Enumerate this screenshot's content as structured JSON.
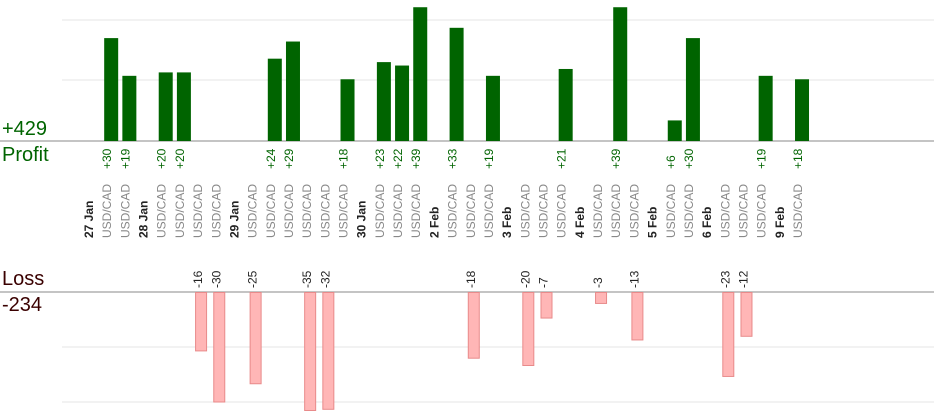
{
  "summary": {
    "profit_total": "+429",
    "profit_label": "Profit",
    "loss_label": "Loss",
    "loss_total": "-234"
  },
  "colors": {
    "profit_bar": "#006400",
    "profit_text": "#006400",
    "loss_bar": "#ffb6b6",
    "loss_bar_border": "#e88a8a",
    "loss_text": "#222222",
    "date_text": "#222222",
    "pair_text": "#888888",
    "grid": "#e4e4e4",
    "axis": "#888888"
  },
  "chart_data": {
    "type": "bar",
    "title": "",
    "pair_label": "USD/CAD",
    "profit_ylim": [
      0,
      45
    ],
    "loss_ylim": [
      -30,
      0
    ],
    "days": [
      {
        "date": "27 Jan",
        "trades": [
          30,
          19
        ]
      },
      {
        "date": "28 Jan",
        "trades": [
          20,
          20,
          -16,
          -30
        ]
      },
      {
        "date": "29 Jan",
        "trades": [
          -25,
          24,
          29,
          -35,
          -32,
          18
        ]
      },
      {
        "date": "30 Jan",
        "trades": [
          23,
          22,
          39
        ]
      },
      {
        "date": "2 Feb",
        "trades": [
          33,
          -18,
          19
        ]
      },
      {
        "date": "3 Feb",
        "trades": [
          -20,
          -7,
          21
        ]
      },
      {
        "date": "4 Feb",
        "trades": [
          -3,
          39,
          -13
        ]
      },
      {
        "date": "5 Feb",
        "trades": [
          6,
          30
        ]
      },
      {
        "date": "6 Feb",
        "trades": [
          -23,
          -12,
          19
        ]
      },
      {
        "date": "9 Feb",
        "trades": [
          18
        ]
      }
    ]
  }
}
